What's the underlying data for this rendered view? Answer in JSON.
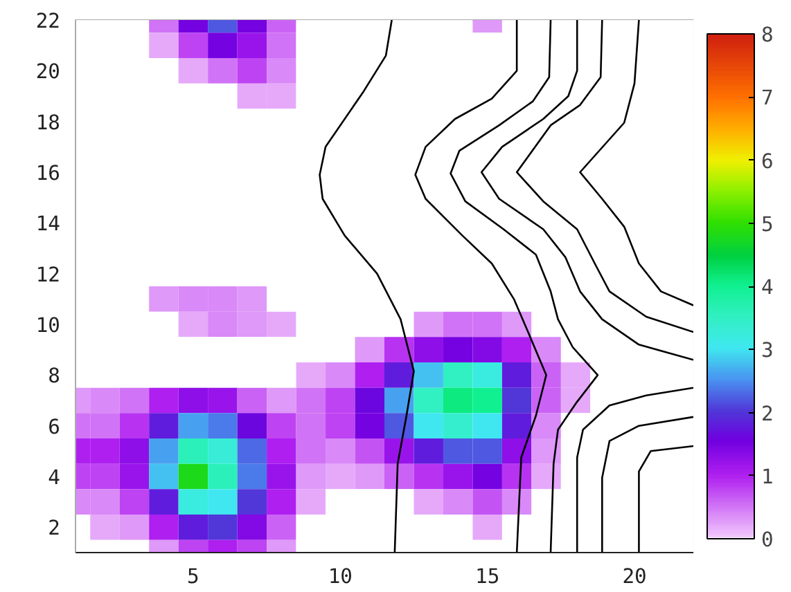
{
  "chart_data": {
    "type": "heatmap",
    "x": [
      1,
      2,
      3,
      4,
      5,
      6,
      7,
      8,
      9,
      10,
      11,
      12,
      13,
      14,
      15,
      16,
      17,
      18,
      19,
      20,
      21,
      22
    ],
    "y": [
      22,
      21,
      20,
      19,
      18,
      17,
      16,
      15,
      14,
      13,
      12,
      11,
      10,
      9,
      8,
      7,
      6,
      5,
      4,
      3,
      2,
      1
    ],
    "cells": [
      [
        0,
        0,
        0,
        0.5,
        1.5,
        2.2,
        1.5,
        0.6,
        0,
        0,
        0,
        0,
        0,
        0,
        0.3,
        0,
        0,
        0,
        0,
        0,
        0,
        0
      ],
      [
        0,
        0,
        0,
        0.2,
        0.8,
        1.5,
        1.2,
        0.5,
        0,
        0,
        0,
        0,
        0,
        0,
        0,
        0,
        0,
        0,
        0,
        0,
        0,
        0
      ],
      [
        0,
        0,
        0,
        0,
        0.2,
        0.5,
        0.8,
        0.4,
        0,
        0,
        0,
        0,
        0,
        0,
        0,
        0,
        0,
        0,
        0,
        0,
        0,
        0
      ],
      [
        0,
        0,
        0,
        0,
        0,
        0,
        0.2,
        0.2,
        0,
        0,
        0,
        0,
        0,
        0,
        0,
        0,
        0,
        0,
        0,
        0,
        0,
        0
      ],
      [
        0,
        0,
        0,
        0,
        0,
        0,
        0,
        0,
        0,
        0,
        0,
        0,
        0,
        0,
        0,
        0,
        0,
        0,
        0,
        0,
        0,
        0
      ],
      [
        0,
        0,
        0,
        0,
        0,
        0,
        0,
        0,
        0,
        0,
        0,
        0,
        0,
        0,
        0,
        0,
        0,
        0,
        0,
        0,
        0,
        0
      ],
      [
        0,
        0,
        0,
        0,
        0,
        0,
        0,
        0,
        0,
        0,
        0,
        0,
        0,
        0,
        0,
        0,
        0,
        0,
        0,
        0,
        0,
        0
      ],
      [
        0,
        0,
        0,
        0,
        0,
        0,
        0,
        0,
        0,
        0,
        0,
        0,
        0,
        0,
        0,
        0,
        0,
        0,
        0,
        0,
        0,
        0
      ],
      [
        0,
        0,
        0,
        0,
        0,
        0,
        0,
        0,
        0,
        0,
        0,
        0,
        0,
        0,
        0,
        0,
        0,
        0,
        0,
        0,
        0,
        0
      ],
      [
        0,
        0,
        0,
        0,
        0,
        0,
        0,
        0,
        0,
        0,
        0,
        0,
        0,
        0,
        0,
        0,
        0,
        0,
        0,
        0,
        0,
        0
      ],
      [
        0,
        0,
        0,
        0,
        0,
        0,
        0,
        0,
        0,
        0,
        0,
        0,
        0,
        0,
        0,
        0,
        0,
        0,
        0,
        0,
        0,
        0
      ],
      [
        0,
        0,
        0,
        0.3,
        0.4,
        0.4,
        0.3,
        0,
        0,
        0,
        0,
        0,
        0,
        0,
        0,
        0,
        0,
        0,
        0,
        0,
        0,
        0
      ],
      [
        0,
        0,
        0,
        0,
        0.2,
        0.4,
        0.3,
        0.2,
        0,
        0,
        0,
        0,
        0.3,
        0.5,
        0.5,
        0.3,
        0,
        0,
        0,
        0,
        0,
        0
      ],
      [
        0,
        0,
        0,
        0,
        0,
        0,
        0,
        0,
        0,
        0,
        0.3,
        0.9,
        1.3,
        1.5,
        1.4,
        1.0,
        0.4,
        0,
        0,
        0,
        0,
        0
      ],
      [
        0,
        0,
        0,
        0,
        0,
        0,
        0,
        0,
        0.2,
        0.4,
        1.0,
        1.8,
        2.8,
        3.5,
        3.2,
        1.8,
        0.6,
        0.2,
        0,
        0,
        0,
        0
      ],
      [
        0.3,
        0.4,
        0.5,
        1.0,
        1.3,
        1.2,
        0.6,
        0.3,
        0.5,
        0.8,
        1.6,
        2.6,
        3.5,
        4.1,
        4.0,
        2.0,
        0.6,
        0.2,
        0,
        0,
        0,
        0
      ],
      [
        0.5,
        0.5,
        0.9,
        1.8,
        2.6,
        2.4,
        1.6,
        0.8,
        0.5,
        0.8,
        1.5,
        2.2,
        3.0,
        3.4,
        3.0,
        1.8,
        0.4,
        0,
        0,
        0,
        0,
        0
      ],
      [
        1.0,
        1.0,
        1.3,
        2.6,
        3.6,
        3.3,
        2.3,
        1.0,
        0.5,
        0.4,
        0.7,
        1.2,
        1.8,
        2.2,
        2.2,
        1.3,
        0.3,
        0,
        0,
        0,
        0,
        0
      ],
      [
        0.8,
        0.8,
        1.2,
        2.8,
        4.8,
        3.6,
        2.4,
        1.2,
        0.3,
        0.2,
        0.3,
        0.6,
        0.9,
        1.2,
        1.5,
        0.9,
        0.2,
        0,
        0,
        0,
        0,
        0
      ],
      [
        0.4,
        0.4,
        0.8,
        1.8,
        3.2,
        3.0,
        2.0,
        1.0,
        0.2,
        0,
        0,
        0,
        0.2,
        0.4,
        0.7,
        0.4,
        0,
        0,
        0,
        0,
        0,
        0
      ],
      [
        0,
        0.2,
        0.3,
        1.0,
        1.8,
        2.0,
        1.4,
        0.6,
        0,
        0,
        0,
        0,
        0,
        0,
        0.2,
        0,
        0,
        0,
        0,
        0,
        0,
        0
      ],
      [
        0,
        0,
        0,
        0.3,
        0.8,
        1.0,
        0.8,
        0.3,
        0,
        0,
        0,
        0,
        0,
        0,
        0,
        0,
        0,
        0,
        0,
        0,
        0,
        0
      ]
    ],
    "clim": [
      0,
      8
    ],
    "cticks": [
      0,
      1,
      2,
      3,
      4,
      5,
      6,
      7,
      8
    ],
    "xlim": [
      1,
      22
    ],
    "ylim": [
      1,
      22
    ],
    "xticks": [
      5,
      10,
      15,
      20
    ],
    "yticks": [
      2,
      4,
      6,
      8,
      10,
      12,
      14,
      16,
      18,
      20,
      22
    ],
    "series": [
      {
        "type": "line",
        "color": "#000000",
        "x": [
          11.75,
          11.55,
          10.8,
          9.5,
          9.3,
          9.4,
          10.15,
          11.25,
          12.05,
          12.5,
          12.25,
          11.95,
          11.85
        ],
        "values": [
          22,
          20.6,
          19.2,
          17.0,
          15.9,
          14.95,
          13.5,
          12.0,
          10.2,
          8.15,
          6.4,
          4.5,
          1
        ]
      },
      {
        "type": "line",
        "color": "#000000",
        "x": [
          16.0,
          16.0,
          15.15,
          13.9,
          12.9,
          12.55,
          12.9,
          14.15,
          15.15,
          15.9,
          16.4,
          17.0,
          16.65,
          16.15,
          16.0
        ],
        "values": [
          22,
          20.0,
          18.9,
          18.1,
          17.0,
          15.9,
          14.95,
          13.5,
          12.4,
          11.0,
          9.65,
          8.0,
          6.4,
          4.75,
          1
        ]
      },
      {
        "type": "line",
        "color": "#000000",
        "x": [
          17.15,
          17.1,
          16.55,
          15.4,
          14.05,
          13.75,
          14.25,
          15.55,
          16.65,
          17.15,
          17.4,
          17.9,
          18.75,
          18.05,
          17.4,
          17.25,
          17.15
        ],
        "values": [
          22,
          19.75,
          18.8,
          17.85,
          16.85,
          15.95,
          14.85,
          13.75,
          12.75,
          11.3,
          10.2,
          9.1,
          8.0,
          6.95,
          5.85,
          4.5,
          1
        ]
      },
      {
        "type": "line",
        "color": "#000000",
        "x": [
          18.05,
          18.05,
          17.75,
          16.9,
          15.5,
          14.8,
          15.4,
          16.9,
          17.65,
          18.15,
          18.9,
          20.15,
          22
        ],
        "values": [
          22,
          20.0,
          19.0,
          18.1,
          17.0,
          16.0,
          14.95,
          13.75,
          12.65,
          11.3,
          10.2,
          9.2,
          8.6
        ]
      },
      {
        "type": "line",
        "color": "#000000",
        "x": [
          18.9,
          18.85,
          18.15,
          17.15,
          16.0,
          16.9,
          18.05,
          18.65,
          19.15,
          20.4,
          22
        ],
        "values": [
          22,
          19.75,
          18.65,
          17.85,
          16.0,
          14.85,
          13.75,
          12.4,
          11.3,
          10.3,
          9.7
        ]
      },
      {
        "type": "line",
        "color": "#000000",
        "x": [
          20.15,
          20.0,
          19.65,
          18.15,
          18.9,
          19.65,
          20.15,
          20.9,
          22
        ],
        "values": [
          22,
          19.5,
          17.95,
          16.0,
          14.95,
          13.85,
          12.4,
          11.3,
          10.75
        ]
      },
      {
        "type": "line",
        "color": "#000000",
        "x": [
          18.05,
          18.05,
          18.25,
          19.15,
          20.4,
          22
        ],
        "values": [
          1,
          4.75,
          5.85,
          6.8,
          7.2,
          7.5
        ]
      },
      {
        "type": "line",
        "color": "#000000",
        "x": [
          18.9,
          18.9,
          19.15,
          20.15,
          22
        ],
        "values": [
          1,
          3.95,
          5.4,
          6.0,
          6.35
        ]
      },
      {
        "type": "line",
        "color": "#000000",
        "x": [
          20.15,
          20.15,
          20.55,
          22
        ],
        "values": [
          1,
          4.2,
          5.0,
          5.2
        ]
      }
    ]
  }
}
